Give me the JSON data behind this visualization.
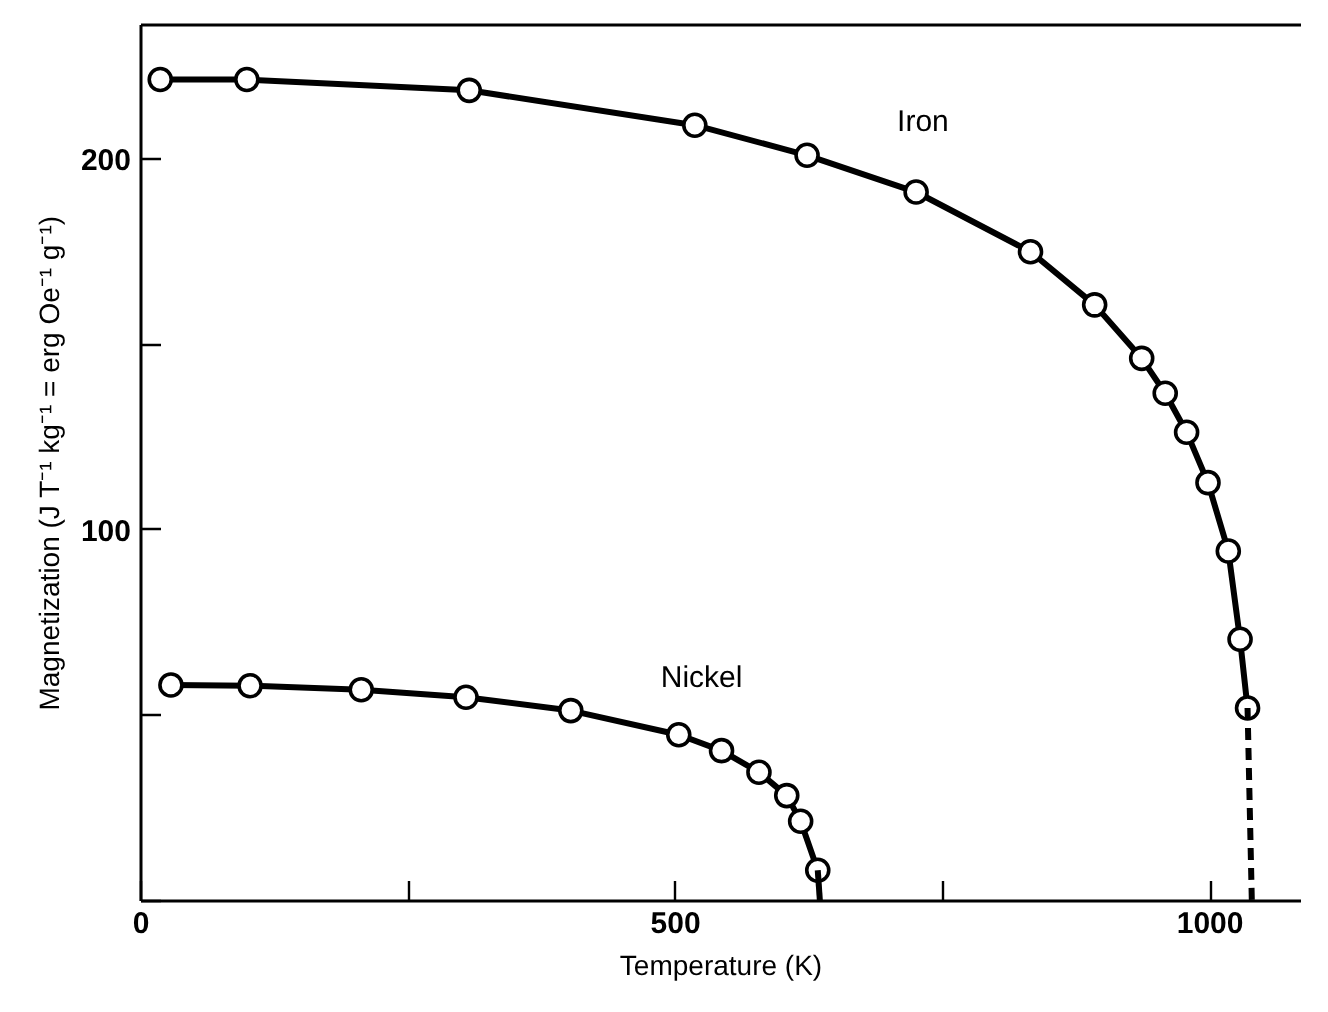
{
  "chart_data": {
    "type": "line",
    "xlabel": "Temperature (K)",
    "ylabel": "Magnetization (J T⁻¹ kg⁻¹ = erg Oe⁻¹ g⁻¹)",
    "xlim": [
      0,
      1085
    ],
    "ylim": [
      0,
      236
    ],
    "xticks": [
      0,
      {
        "value": 250,
        "label": null
      },
      500,
      {
        "value": 750,
        "label": null
      },
      1000
    ],
    "yticks": [
      {
        "value": 0,
        "label": null
      },
      {
        "value": 50,
        "label": null
      },
      100,
      {
        "value": 150,
        "label": null
      },
      200
    ],
    "grid": false,
    "marker": "circle",
    "line_style": "solid",
    "series": [
      {
        "name": "Iron",
        "color": "#000000",
        "x": [
          18,
          99,
          307,
          518,
          623,
          725,
          832,
          892,
          936,
          958,
          978,
          998,
          1017,
          1028,
          1035
        ],
        "values": [
          221.3,
          221.3,
          218.4,
          209,
          200.9,
          191,
          174.9,
          160.6,
          146.2,
          136.8,
          126.3,
          112.7,
          94.3,
          70.5,
          52
        ]
      },
      {
        "type": "line",
        "color": "#000000",
        "marker": "none",
        "line_style": "dashed",
        "x": [
          1035,
          1039
        ],
        "values": [
          52,
          0
        ]
      },
      {
        "name": "Nickel",
        "color": "#000000",
        "x": [
          28,
          102,
          206,
          304,
          402,
          503,
          543,
          578,
          604,
          617,
          633
        ],
        "values": [
          58.2,
          58,
          56.9,
          54.9,
          51.3,
          44.8,
          40.5,
          34.7,
          28.4,
          21.5,
          8.3
        ]
      },
      {
        "type": "line",
        "color": "#000000",
        "marker": "none",
        "x": [
          633,
          635
        ],
        "values": [
          8.3,
          0
        ]
      }
    ]
  }
}
